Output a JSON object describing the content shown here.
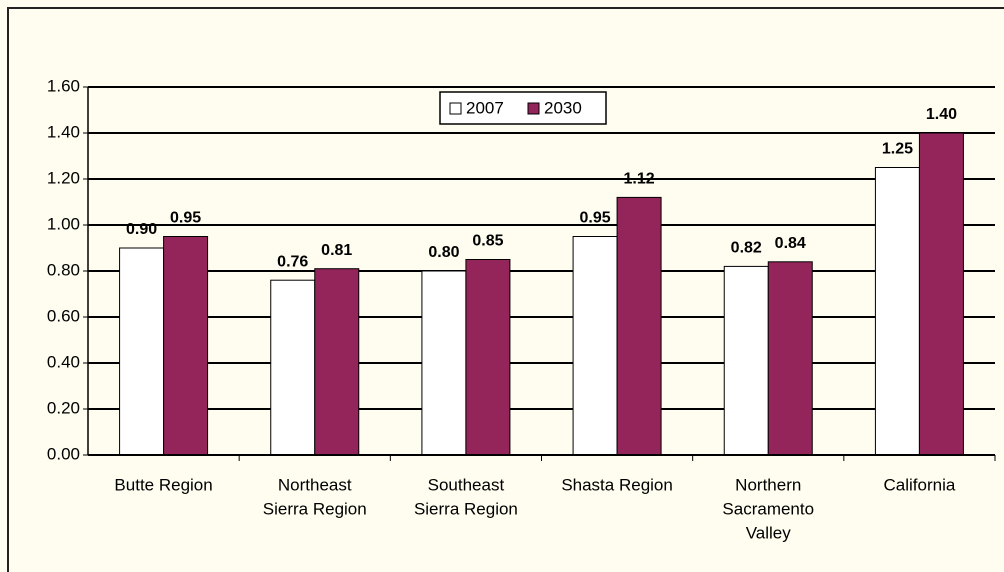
{
  "chart_data": {
    "type": "bar",
    "categories": [
      [
        "Butte Region"
      ],
      [
        "Northeast",
        "Sierra Region"
      ],
      [
        "Southeast",
        "Sierra Region"
      ],
      [
        "Shasta Region"
      ],
      [
        "Northern",
        "Sacramento",
        "Valley"
      ],
      [
        "California"
      ]
    ],
    "series": [
      {
        "name": "2007",
        "color": "#ffffff",
        "values": [
          0.9,
          0.76,
          0.8,
          0.95,
          0.82,
          1.25
        ],
        "value_labels": [
          "0.90",
          "0.76",
          "0.80",
          "0.95",
          "0.82",
          "1.25"
        ]
      },
      {
        "name": "2030",
        "color": "#93255a",
        "values": [
          0.95,
          0.81,
          0.85,
          1.12,
          0.84,
          1.4
        ],
        "value_labels": [
          "0.95",
          "0.81",
          "0.85",
          "1.12",
          "0.84",
          "1.40"
        ]
      }
    ],
    "ylim": [
      0,
      1.6
    ],
    "yticks": [
      {
        "value": 0,
        "label": "0.00"
      },
      {
        "value": 0.2,
        "label": "0.20"
      },
      {
        "value": 0.4,
        "label": "0.40"
      },
      {
        "value": 0.6,
        "label": "0.60"
      },
      {
        "value": 0.8,
        "label": "0.80"
      },
      {
        "value": 1.0,
        "label": "1.00"
      },
      {
        "value": 1.2,
        "label": "1.20"
      },
      {
        "value": 1.4,
        "label": "1.40"
      },
      {
        "value": 1.6,
        "label": "1.60"
      }
    ],
    "grid": true,
    "legend": "top"
  }
}
